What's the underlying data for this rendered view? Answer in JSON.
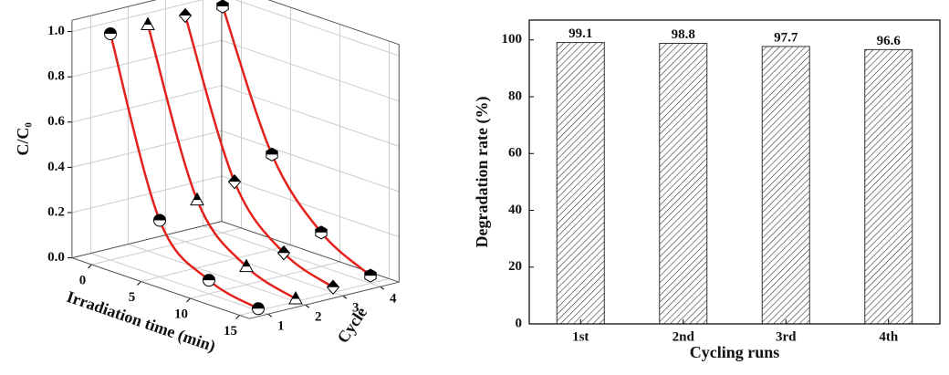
{
  "chart_data": [
    {
      "type": "line3d",
      "xlabel": "Irradiation time (min)",
      "ylabel": "Cycle",
      "zlabel": "C/C₀",
      "x": [
        0,
        5,
        10,
        15
      ],
      "xlim": [
        -2,
        16
      ],
      "xticks": [
        0,
        5,
        10,
        15
      ],
      "ylim": [
        0.5,
        4.5
      ],
      "yticks": [
        1,
        2,
        3,
        4
      ],
      "zlim": [
        0,
        1.05
      ],
      "zticks": [
        {
          "value": 0,
          "label": "0.0"
        },
        0.2,
        0.4,
        0.6,
        0.8,
        {
          "value": 1,
          "label": "1.0"
        }
      ],
      "line_color": "#e3211c",
      "grid": true,
      "series": [
        {
          "y": 1,
          "marker": "circle",
          "values": [
            1.0,
            0.25,
            0.06,
            0.009
          ]
        },
        {
          "y": 2,
          "marker": "triangle",
          "values": [
            1.0,
            0.3,
            0.08,
            0.012
          ]
        },
        {
          "y": 3,
          "marker": "diamond",
          "values": [
            1.0,
            0.34,
            0.1,
            0.023
          ]
        },
        {
          "y": 4,
          "marker": "hexagon",
          "values": [
            1.0,
            0.42,
            0.15,
            0.034
          ]
        }
      ]
    },
    {
      "type": "bar",
      "xlabel": "Cycling runs",
      "ylabel": "Degradation rate (%)",
      "categories": [
        "1st",
        "2nd",
        "3rd",
        "4th"
      ],
      "values": [
        99.1,
        98.8,
        97.7,
        96.6
      ],
      "ylim": [
        0,
        107
      ],
      "yticks": [
        0,
        20,
        40,
        60,
        80,
        100
      ],
      "color": "#333333",
      "hatch": true
    }
  ]
}
